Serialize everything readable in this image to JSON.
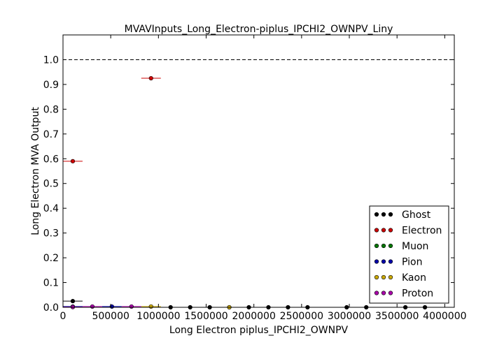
{
  "chart_data": {
    "type": "scatter",
    "title": "MVAVInputs_Long_Electron-piplus_IPCHI2_OWNPV_Liny",
    "xlabel": "Long Electron piplus_IPCHI2_OWNPV",
    "ylabel": "Long Electron MVA Output",
    "xlim": [
      0,
      4100000
    ],
    "ylim": [
      0,
      1.1
    ],
    "x_ticks": [
      0,
      500000,
      1000000,
      1500000,
      2000000,
      2500000,
      3000000,
      3500000,
      4000000
    ],
    "x_tick_labels": [
      "0",
      "500000",
      "1000000",
      "1500000",
      "2000000",
      "2500000",
      "3000000",
      "3500000",
      "4000000"
    ],
    "y_ticks": [
      0.0,
      0.1,
      0.2,
      0.3,
      0.4,
      0.5,
      0.6,
      0.7,
      0.8,
      0.9,
      1.0
    ],
    "y_tick_labels": [
      "0.0",
      "0.1",
      "0.2",
      "0.3",
      "0.4",
      "0.5",
      "0.6",
      "0.7",
      "0.8",
      "0.9",
      "1.0"
    ],
    "reference_line_y": 1.0,
    "legend_position": "lower-right",
    "series": [
      {
        "name": "Ghost",
        "color": "#000000",
        "points": [
          {
            "x": 102500,
            "y": 0.025,
            "xerr": 102500
          },
          {
            "x": 1127500,
            "y": 0.0
          },
          {
            "x": 1332500,
            "y": 0.0
          },
          {
            "x": 1537500,
            "y": 0.0
          },
          {
            "x": 1947500,
            "y": 0.0
          },
          {
            "x": 2152500,
            "y": 0.0
          },
          {
            "x": 2357500,
            "y": 0.0
          },
          {
            "x": 2562500,
            "y": 0.0
          },
          {
            "x": 2972500,
            "y": 0.0
          },
          {
            "x": 3177500,
            "y": 0.0
          },
          {
            "x": 3587500,
            "y": 0.0
          },
          {
            "x": 3792500,
            "y": 0.0
          }
        ]
      },
      {
        "name": "Electron",
        "color": "#cc0000",
        "points": [
          {
            "x": 102500,
            "y": 0.59,
            "xerr": 102500
          },
          {
            "x": 922500,
            "y": 0.925,
            "xerr": 102500
          }
        ]
      },
      {
        "name": "Muon",
        "color": "#007700",
        "points": []
      },
      {
        "name": "Pion",
        "color": "#0000aa",
        "points": [
          {
            "x": 102500,
            "y": 0.003,
            "xerr": 102500
          },
          {
            "x": 512500,
            "y": 0.003,
            "xerr": 102500
          }
        ]
      },
      {
        "name": "Kaon",
        "color": "#ccaa00",
        "points": [
          {
            "x": 922500,
            "y": 0.003,
            "xerr": 102500
          },
          {
            "x": 1742500,
            "y": 0.0
          }
        ]
      },
      {
        "name": "Proton",
        "color": "#aa00aa",
        "points": [
          {
            "x": 102500,
            "y": 0.001,
            "xerr": 102500
          },
          {
            "x": 307500,
            "y": 0.003,
            "xerr": 102500
          },
          {
            "x": 717500,
            "y": 0.003,
            "xerr": 102500
          }
        ]
      }
    ]
  }
}
